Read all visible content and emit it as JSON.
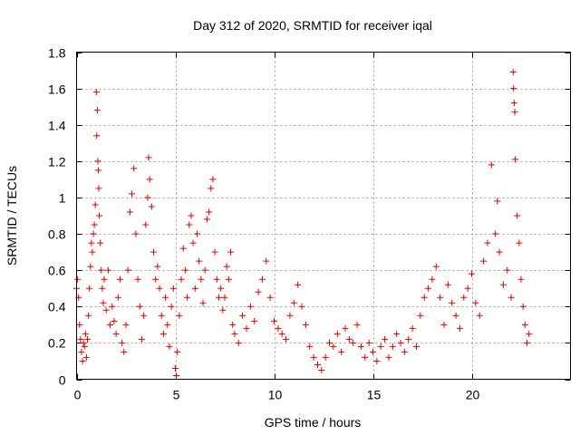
{
  "chart_data": {
    "type": "scatter",
    "title": "Day 312 of 2020, SRMTID for receiver iqal",
    "xlabel": "GPS time / hours",
    "ylabel": "SRMTID / TECUs",
    "xlim": [
      0,
      25
    ],
    "ylim": [
      0,
      1.8
    ],
    "xticks": [
      0,
      5,
      10,
      15,
      20
    ],
    "xtick_labels": [
      "0",
      "5",
      "10",
      "15",
      "20"
    ],
    "yticks": [
      0,
      0.2,
      0.4,
      0.6,
      0.8,
      1.0,
      1.2,
      1.4,
      1.6,
      1.8
    ],
    "ytick_labels": [
      "0",
      "0.2",
      "0.4",
      "0.6",
      "0.8",
      "1",
      "1.2",
      "1.4",
      "1.6",
      "1.8"
    ],
    "grid": true,
    "marker": "+",
    "color": "#e00000",
    "series": [
      {
        "name": "SRMTID",
        "points": [
          [
            0.0,
            0.5
          ],
          [
            0.05,
            0.55
          ],
          [
            0.1,
            0.45
          ],
          [
            0.15,
            0.3
          ],
          [
            0.2,
            0.22
          ],
          [
            0.25,
            0.15
          ],
          [
            0.3,
            0.1
          ],
          [
            0.35,
            0.2
          ],
          [
            0.4,
            0.18
          ],
          [
            0.45,
            0.25
          ],
          [
            0.5,
            0.12
          ],
          [
            0.55,
            0.22
          ],
          [
            0.6,
            0.35
          ],
          [
            0.65,
            0.5
          ],
          [
            0.7,
            0.62
          ],
          [
            0.75,
            0.75
          ],
          [
            0.8,
            0.7
          ],
          [
            0.85,
            0.8
          ],
          [
            0.9,
            0.85
          ],
          [
            0.95,
            0.96
          ],
          [
            1.0,
            1.58
          ],
          [
            1.02,
            1.34
          ],
          [
            1.05,
            1.48
          ],
          [
            1.08,
            1.2
          ],
          [
            1.1,
            1.15
          ],
          [
            1.12,
            1.05
          ],
          [
            1.15,
            0.9
          ],
          [
            1.2,
            0.75
          ],
          [
            1.25,
            0.6
          ],
          [
            1.3,
            0.5
          ],
          [
            1.35,
            0.42
          ],
          [
            1.4,
            0.55
          ],
          [
            1.5,
            0.38
          ],
          [
            1.6,
            0.6
          ],
          [
            1.7,
            0.3
          ],
          [
            1.8,
            0.4
          ],
          [
            1.9,
            0.32
          ],
          [
            2.0,
            0.25
          ],
          [
            2.1,
            0.45
          ],
          [
            2.2,
            0.55
          ],
          [
            2.3,
            0.2
          ],
          [
            2.4,
            0.15
          ],
          [
            2.5,
            0.3
          ],
          [
            2.6,
            0.6
          ],
          [
            2.7,
            0.92
          ],
          [
            2.8,
            1.02
          ],
          [
            2.9,
            1.16
          ],
          [
            3.0,
            0.8
          ],
          [
            3.1,
            0.55
          ],
          [
            3.2,
            0.4
          ],
          [
            3.3,
            0.22
          ],
          [
            3.4,
            0.35
          ],
          [
            3.5,
            0.85
          ],
          [
            3.6,
            1.0
          ],
          [
            3.65,
            1.22
          ],
          [
            3.7,
            1.1
          ],
          [
            3.8,
            0.95
          ],
          [
            3.9,
            0.7
          ],
          [
            4.0,
            0.55
          ],
          [
            4.1,
            0.62
          ],
          [
            4.2,
            0.5
          ],
          [
            4.3,
            0.35
          ],
          [
            4.4,
            0.25
          ],
          [
            4.5,
            0.45
          ],
          [
            4.6,
            0.3
          ],
          [
            4.7,
            0.18
          ],
          [
            4.8,
            0.4
          ],
          [
            4.9,
            0.5
          ],
          [
            5.0,
            0.06
          ],
          [
            5.05,
            0.02
          ],
          [
            5.1,
            0.15
          ],
          [
            5.2,
            0.35
          ],
          [
            5.3,
            0.55
          ],
          [
            5.4,
            0.72
          ],
          [
            5.5,
            0.6
          ],
          [
            5.6,
            0.45
          ],
          [
            5.7,
            0.85
          ],
          [
            5.8,
            0.9
          ],
          [
            5.9,
            0.75
          ],
          [
            6.0,
            0.5
          ],
          [
            6.1,
            0.8
          ],
          [
            6.2,
            0.65
          ],
          [
            6.3,
            0.55
          ],
          [
            6.4,
            0.42
          ],
          [
            6.5,
            0.6
          ],
          [
            6.6,
            0.88
          ],
          [
            6.7,
            0.92
          ],
          [
            6.8,
            1.05
          ],
          [
            6.9,
            1.1
          ],
          [
            7.0,
            0.7
          ],
          [
            7.1,
            0.55
          ],
          [
            7.2,
            0.45
          ],
          [
            7.3,
            0.5
          ],
          [
            7.4,
            0.38
          ],
          [
            7.5,
            0.45
          ],
          [
            7.6,
            0.62
          ],
          [
            7.7,
            0.55
          ],
          [
            7.8,
            0.7
          ],
          [
            7.9,
            0.3
          ],
          [
            8.0,
            0.25
          ],
          [
            8.2,
            0.2
          ],
          [
            8.4,
            0.35
          ],
          [
            8.6,
            0.28
          ],
          [
            8.8,
            0.4
          ],
          [
            9.0,
            0.32
          ],
          [
            9.2,
            0.48
          ],
          [
            9.4,
            0.55
          ],
          [
            9.6,
            0.65
          ],
          [
            9.8,
            0.45
          ],
          [
            10.0,
            0.32
          ],
          [
            10.2,
            0.28
          ],
          [
            10.4,
            0.25
          ],
          [
            10.6,
            0.22
          ],
          [
            10.8,
            0.35
          ],
          [
            11.0,
            0.42
          ],
          [
            11.2,
            0.52
          ],
          [
            11.4,
            0.4
          ],
          [
            11.6,
            0.3
          ],
          [
            11.8,
            0.18
          ],
          [
            12.0,
            0.12
          ],
          [
            12.2,
            0.08
          ],
          [
            12.4,
            0.05
          ],
          [
            12.6,
            0.12
          ],
          [
            12.8,
            0.2
          ],
          [
            13.0,
            0.18
          ],
          [
            13.2,
            0.25
          ],
          [
            13.4,
            0.15
          ],
          [
            13.6,
            0.28
          ],
          [
            13.8,
            0.22
          ],
          [
            14.0,
            0.2
          ],
          [
            14.2,
            0.3
          ],
          [
            14.4,
            0.18
          ],
          [
            14.6,
            0.12
          ],
          [
            14.8,
            0.2
          ],
          [
            15.0,
            0.15
          ],
          [
            15.2,
            0.1
          ],
          [
            15.4,
            0.18
          ],
          [
            15.6,
            0.22
          ],
          [
            15.8,
            0.12
          ],
          [
            16.0,
            0.18
          ],
          [
            16.2,
            0.25
          ],
          [
            16.4,
            0.2
          ],
          [
            16.6,
            0.15
          ],
          [
            16.8,
            0.22
          ],
          [
            17.0,
            0.28
          ],
          [
            17.2,
            0.18
          ],
          [
            17.4,
            0.35
          ],
          [
            17.6,
            0.45
          ],
          [
            17.8,
            0.5
          ],
          [
            18.0,
            0.55
          ],
          [
            18.2,
            0.62
          ],
          [
            18.4,
            0.45
          ],
          [
            18.6,
            0.3
          ],
          [
            18.8,
            0.52
          ],
          [
            19.0,
            0.42
          ],
          [
            19.2,
            0.35
          ],
          [
            19.4,
            0.28
          ],
          [
            19.6,
            0.45
          ],
          [
            19.8,
            0.5
          ],
          [
            20.0,
            0.58
          ],
          [
            20.2,
            0.42
          ],
          [
            20.4,
            0.35
          ],
          [
            20.6,
            0.65
          ],
          [
            20.8,
            0.75
          ],
          [
            21.0,
            1.18
          ],
          [
            21.2,
            0.8
          ],
          [
            21.3,
            0.98
          ],
          [
            21.4,
            0.7
          ],
          [
            21.6,
            0.52
          ],
          [
            21.8,
            0.6
          ],
          [
            22.0,
            0.45
          ],
          [
            22.1,
            1.69
          ],
          [
            22.12,
            1.6
          ],
          [
            22.15,
            1.52
          ],
          [
            22.18,
            1.47
          ],
          [
            22.2,
            1.21
          ],
          [
            22.3,
            0.9
          ],
          [
            22.4,
            0.75
          ],
          [
            22.5,
            0.55
          ],
          [
            22.6,
            0.4
          ],
          [
            22.7,
            0.3
          ],
          [
            22.8,
            0.2
          ],
          [
            22.9,
            0.25
          ]
        ]
      }
    ]
  }
}
